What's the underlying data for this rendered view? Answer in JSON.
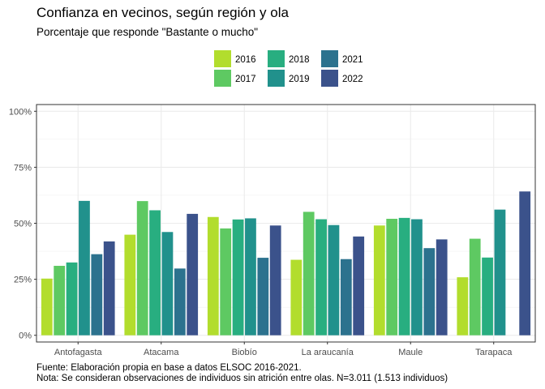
{
  "chart_data": {
    "type": "bar",
    "title": "Confianza en vecinos, según región y ola",
    "subtitle": "Porcentaje que responde \"Bastante o mucho\"",
    "xlabel": "",
    "ylabel": "",
    "ylim": [
      -0.03,
      1.03
    ],
    "y_ticks": [
      0,
      0.25,
      0.5,
      0.75,
      1.0
    ],
    "y_tick_labels": [
      "0%",
      "25%",
      "50%",
      "75%",
      "100%"
    ],
    "categories": [
      "Antofagasta",
      "Atacama",
      "Biobío",
      "La araucanía",
      "Maule",
      "Tarapaca"
    ],
    "series": [
      {
        "name": "2016",
        "color": "#B2DD2D",
        "values": [
          0.253,
          0.449,
          0.528,
          0.337,
          0.49,
          0.259
        ]
      },
      {
        "name": "2017",
        "color": "#5EC962",
        "values": [
          0.31,
          0.599,
          0.477,
          0.551,
          0.52,
          0.431
        ]
      },
      {
        "name": "2018",
        "color": "#28AE80",
        "values": [
          0.325,
          0.558,
          0.517,
          0.518,
          0.524,
          0.347
        ]
      },
      {
        "name": "2019",
        "color": "#21918C",
        "values": [
          0.6,
          0.461,
          0.522,
          0.492,
          0.518,
          0.561
        ]
      },
      {
        "name": "2021",
        "color": "#2C728E",
        "values": [
          0.362,
          0.298,
          0.346,
          0.34,
          0.389,
          0.0
        ]
      },
      {
        "name": "2022",
        "color": "#3B528B",
        "values": [
          0.419,
          0.542,
          0.49,
          0.441,
          0.428,
          0.642
        ]
      }
    ],
    "legend": {
      "position": "top",
      "columns": 3
    },
    "grid": true,
    "caption": [
      "Fuente: Elaboración propia en base a datos ELSOC 2016-2021.",
      "Nota: Se consideran observaciones de individuos sin atrición entre olas. N=3.011 (1.513 individuos)"
    ]
  }
}
